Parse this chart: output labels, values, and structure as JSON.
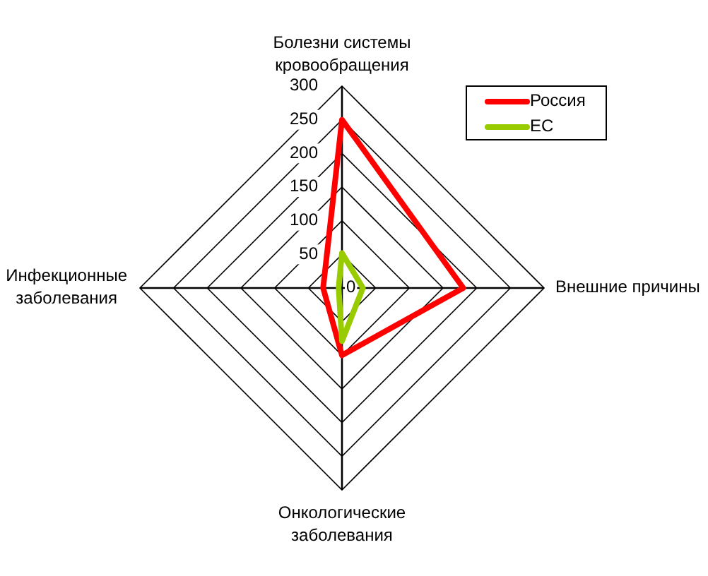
{
  "chart_data": {
    "type": "radar",
    "categories": [
      "Болезни системы кровообращения",
      "Внешние причины",
      "Онкологические заболевания",
      "Инфекционные заболевания"
    ],
    "series": [
      {
        "name": "Россия",
        "color": "#ff0000",
        "values": [
          250,
          180,
          100,
          28
        ]
      },
      {
        "name": "ЕС",
        "color": "#99cc00",
        "values": [
          52,
          31,
          79,
          5
        ]
      }
    ],
    "ylim": [
      0,
      300
    ],
    "yticks": [
      0,
      50,
      100,
      150,
      200,
      250,
      300
    ],
    "grid": true,
    "legend": "top right"
  }
}
